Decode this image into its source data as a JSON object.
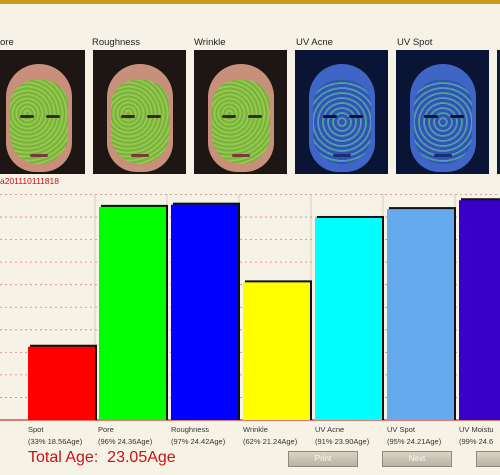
{
  "thumbnails": [
    {
      "label": "ore",
      "kind": "normal"
    },
    {
      "label": "Roughness",
      "kind": "normal"
    },
    {
      "label": "Wrinkle",
      "kind": "normal"
    },
    {
      "label": "UV Acne",
      "kind": "uv"
    },
    {
      "label": "UV Spot",
      "kind": "uv"
    },
    {
      "label": "",
      "kind": "partial"
    }
  ],
  "image_id": "a201110111818",
  "chart_data": {
    "type": "bar",
    "categories": [
      "Spot",
      "Pore",
      "Roughness",
      "Wrinkle",
      "UV Acne",
      "UV Spot",
      "UV Moistu"
    ],
    "sub_labels": [
      "(33% 18.56Age)",
      "(96% 24.36Age)",
      "(97% 24.42Age)",
      "(62% 21.24Age)",
      "(91% 23.90Age)",
      "(95% 24.21Age)",
      "(99% 24.6"
    ],
    "values": [
      33,
      96,
      97,
      62,
      91,
      95,
      99
    ],
    "ylim": [
      0,
      100
    ],
    "grid": true,
    "colors": [
      "#ff0000",
      "#00ff00",
      "#0000ff",
      "#ffff00",
      "#00ffff",
      "#66aaee",
      "#3a00c8"
    ]
  },
  "total": {
    "label": "Total Age:",
    "value": "23.05Age"
  },
  "buttons": {
    "print": "Print",
    "next": "Next"
  }
}
